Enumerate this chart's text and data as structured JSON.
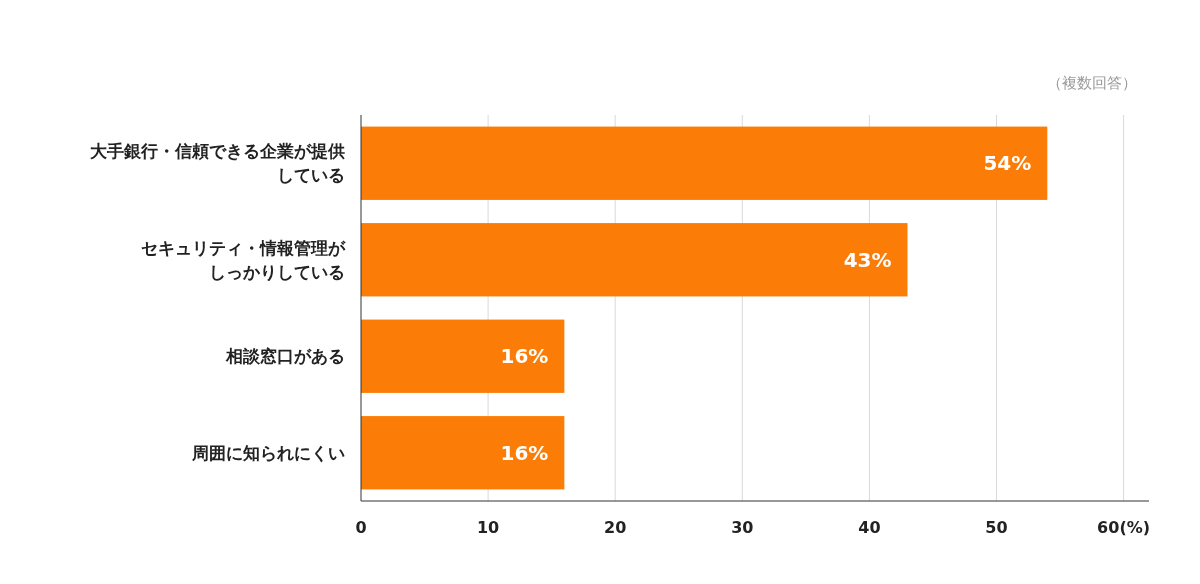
{
  "chart_data": {
    "type": "bar",
    "orientation": "horizontal",
    "categories": [
      "大手銀行・信頼できる企業が提供している",
      "セキュリティ・情報管理がしっかりしている",
      "相談窓口がある",
      "周囲に知られにくい"
    ],
    "values": [
      54,
      43,
      16,
      16
    ],
    "value_labels": [
      "54%",
      "43%",
      "16%",
      "16%"
    ],
    "color": "#fb7d07",
    "xlim": [
      0,
      62
    ],
    "xticks": [
      0,
      10,
      20,
      30,
      40,
      50,
      {
        "value": 60,
        "label": "60(%)"
      }
    ],
    "grid": "x",
    "annotations": [
      "（複数回答）"
    ]
  }
}
